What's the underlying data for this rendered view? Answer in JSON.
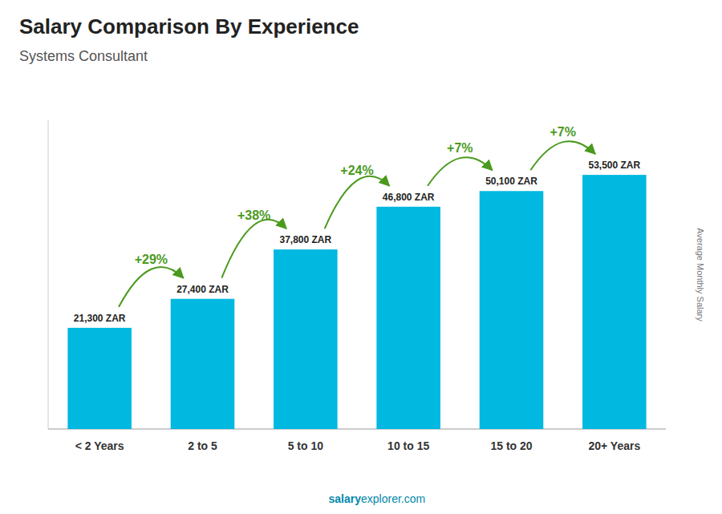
{
  "chart_data": {
    "type": "bar",
    "title": "Salary Comparison By Experience",
    "subtitle": "Systems Consultant",
    "y_label": "Average Monthly Salary",
    "watermark": [
      "salary",
      "explorer.com"
    ],
    "categories": [
      "< 2 Years",
      "2 to 5",
      "5 to 10",
      "10 to 15",
      "15 to 20",
      "20+ Years"
    ],
    "values": [
      21300,
      27400,
      37800,
      46800,
      50100,
      53500
    ],
    "value_labels": [
      "21,300 ZAR",
      "27,400 ZAR",
      "37,800 ZAR",
      "46,800 ZAR",
      "50,100 ZAR",
      "53,500 ZAR"
    ],
    "annotations": [
      "+29%",
      "+38%",
      "+24%",
      "+7%",
      "+7%"
    ],
    "color": "#00b8e0",
    "ylim": [
      0,
      65000
    ],
    "data_labels": true,
    "tick_labels": "x",
    "grid": false
  }
}
